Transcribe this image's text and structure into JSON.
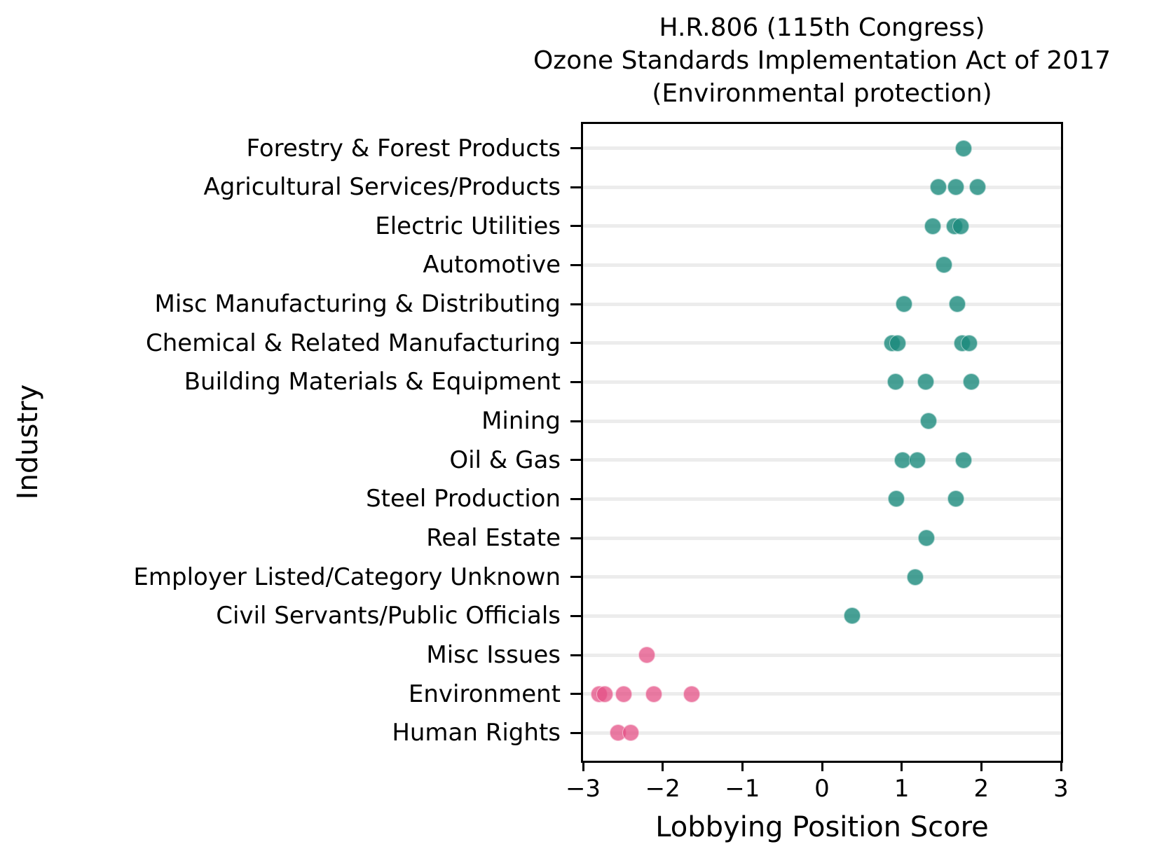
{
  "title": {
    "line1": "H.R.806 (115th Congress)",
    "line2": "Ozone Standards Implementation Act of 2017",
    "line3": "(Environmental protection)"
  },
  "chart_data": {
    "type": "scatter",
    "orientation": "horizontal-categorical-strip",
    "title": "H.R.806 (115th Congress)\nOzone Standards Implementation Act of 2017\n(Environmental protection)",
    "xlabel": "Lobbying Position Score",
    "ylabel": "Industry",
    "xlim": [
      -3,
      3
    ],
    "x_ticks": [
      {
        "value": -3,
        "label": "−3"
      },
      {
        "value": -2,
        "label": "−2"
      },
      {
        "value": -1,
        "label": "−1"
      },
      {
        "value": 0,
        "label": "0"
      },
      {
        "value": 1,
        "label": "1"
      },
      {
        "value": 2,
        "label": "2"
      },
      {
        "value": 3,
        "label": "3"
      }
    ],
    "grid": "horizontal",
    "legend": "none",
    "colors": {
      "support_teal_hex": "#1a8a7c",
      "oppose_pink_hex": "#e45085",
      "teal_rgba": "rgba(26,138,124,0.8)",
      "pink_rgba": "rgba(228,80,133,0.75)",
      "gridline": "#ececec",
      "axis": "#000000"
    },
    "rows": [
      {
        "label": "Forestry & Forest Products",
        "group": "teal",
        "scores": [
          1.78
        ]
      },
      {
        "label": "Agricultural Services/Products",
        "group": "teal",
        "scores": [
          1.46,
          1.68,
          1.95
        ]
      },
      {
        "label": "Electric Utilities",
        "group": "teal",
        "scores": [
          1.39,
          1.66,
          1.74
        ]
      },
      {
        "label": "Automotive",
        "group": "teal",
        "scores": [
          1.53
        ]
      },
      {
        "label": "Misc Manufacturing & Distributing",
        "group": "teal",
        "scores": [
          1.03,
          1.7
        ]
      },
      {
        "label": "Chemical & Related Manufacturing",
        "group": "teal",
        "scores": [
          0.88,
          0.95,
          1.76,
          1.85
        ]
      },
      {
        "label": "Building Materials & Equipment",
        "group": "teal",
        "scores": [
          0.92,
          1.3,
          1.87
        ]
      },
      {
        "label": "Mining",
        "group": "teal",
        "scores": [
          1.34
        ]
      },
      {
        "label": "Oil & Gas",
        "group": "teal",
        "scores": [
          1.01,
          1.2,
          1.78
        ]
      },
      {
        "label": "Steel Production",
        "group": "teal",
        "scores": [
          0.93,
          1.68
        ]
      },
      {
        "label": "Real Estate",
        "group": "teal",
        "scores": [
          1.31
        ]
      },
      {
        "label": "Employer Listed/Category Unknown",
        "group": "teal",
        "scores": [
          1.17
        ]
      },
      {
        "label": "Civil Servants/Public Officials",
        "group": "teal",
        "scores": [
          0.38
        ]
      },
      {
        "label": "Misc Issues",
        "group": "pink",
        "scores": [
          -2.2
        ]
      },
      {
        "label": "Environment",
        "group": "pink",
        "scores": [
          -2.8,
          -2.73,
          -2.49,
          -2.11,
          -1.64
        ]
      },
      {
        "label": "Human Rights",
        "group": "pink",
        "scores": [
          -2.56,
          -2.4
        ]
      }
    ]
  }
}
